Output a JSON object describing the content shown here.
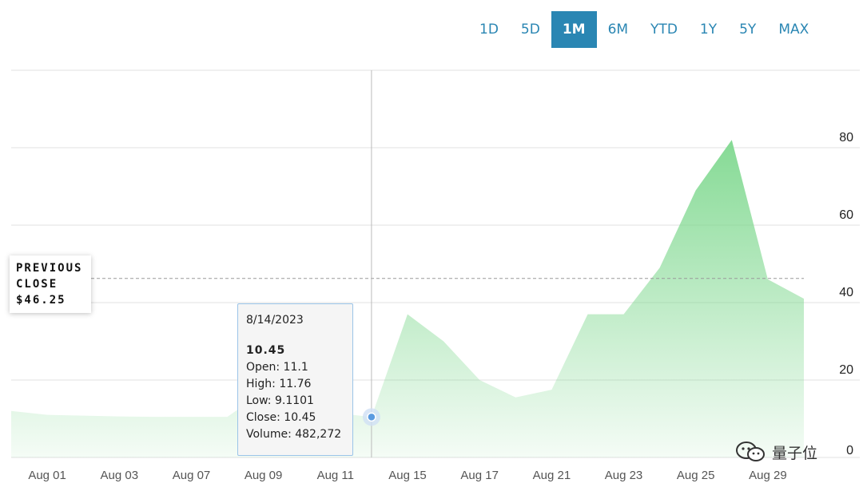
{
  "range_selector": {
    "options": [
      "1D",
      "5D",
      "1M",
      "6M",
      "YTD",
      "1Y",
      "5Y",
      "MAX"
    ],
    "selected": "1M"
  },
  "previous_close": {
    "line1": "PREVIOUS",
    "line2": "CLOSE",
    "value": "$46.25"
  },
  "tooltip": {
    "date": "8/14/2023",
    "price": "10.45",
    "open": "Open: 11.1",
    "high": "High: 11.76",
    "low": "Low: 9.1101",
    "close": "Close: 10.45",
    "volume": "Volume: 482,272"
  },
  "watermark": {
    "text": "量子位",
    "icon": "wechat-icon"
  },
  "colors": {
    "accent": "#2a86b3",
    "area_fill": "#7fd88f",
    "grid": "#e0e0e0"
  },
  "chart_data": {
    "type": "area",
    "x": [
      "2023-07-31",
      "2023-08-01",
      "2023-08-02",
      "2023-08-03",
      "2023-08-04",
      "2023-08-07",
      "2023-08-08",
      "2023-08-09",
      "2023-08-10",
      "2023-08-11",
      "2023-08-14",
      "2023-08-15",
      "2023-08-16",
      "2023-08-17",
      "2023-08-18",
      "2023-08-21",
      "2023-08-22",
      "2023-08-23",
      "2023-08-24",
      "2023-08-25",
      "2023-08-28",
      "2023-08-29",
      "2023-08-30"
    ],
    "values": [
      12,
      11,
      10.8,
      10.6,
      10.5,
      10.5,
      10.5,
      17,
      14,
      11.5,
      10.45,
      37,
      30,
      20,
      15.5,
      17.5,
      37,
      37,
      49,
      69,
      82,
      46,
      41
    ],
    "categories_tick_labels": [
      "Aug 01",
      "Aug 03",
      "Aug 07",
      "Aug 09",
      "Aug 11",
      "Aug 15",
      "Aug 17",
      "Aug 21",
      "Aug 23",
      "Aug 25",
      "Aug 29"
    ],
    "y_ticks": [
      0,
      20,
      40,
      60,
      80
    ],
    "ylim": [
      0,
      100
    ],
    "previous_close": 46.25,
    "hover_index": 10,
    "grid": true,
    "y_axis_side": "right"
  }
}
